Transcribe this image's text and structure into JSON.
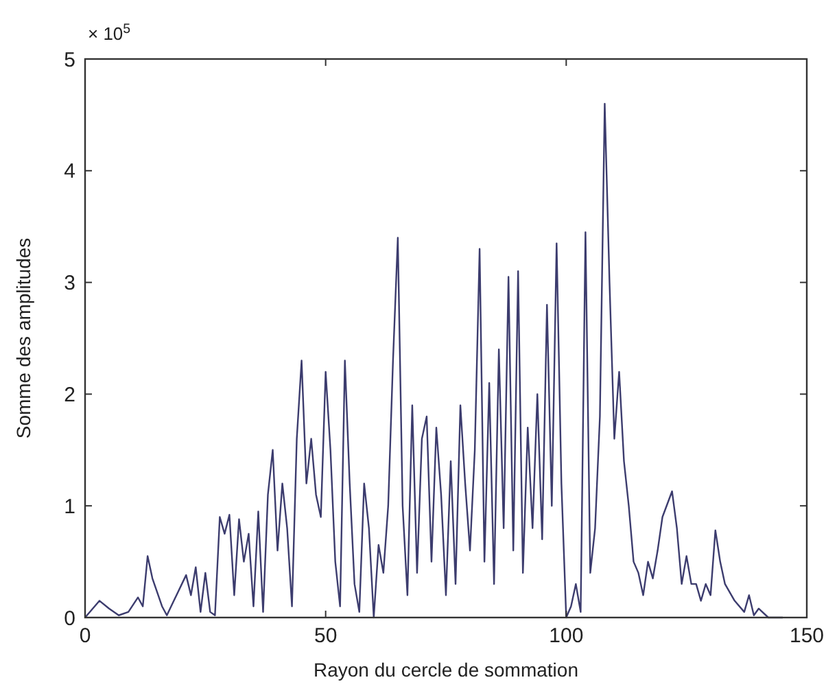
{
  "chart_data": {
    "type": "line",
    "xlabel": "Rayon du cercle de sommation",
    "ylabel": "Somme des amplitudes",
    "annotations": [
      "× 10$^{5}$"
    ],
    "xlim": [
      0,
      150
    ],
    "ylim": [
      0,
      5
    ],
    "xticks": [
      0,
      50,
      100,
      150
    ],
    "yticks": [
      0,
      1,
      2,
      3,
      4,
      5
    ],
    "grid": false,
    "series": [
      {
        "color": "#3c3c6e",
        "x": [
          0,
          3,
          5,
          7,
          9,
          11,
          12,
          13,
          14,
          16,
          17,
          19,
          21,
          22,
          23,
          24,
          25,
          26,
          27,
          28,
          29,
          30,
          31,
          32,
          33,
          34,
          35,
          36,
          37,
          38,
          39,
          40,
          41,
          42,
          43,
          44,
          45,
          46,
          47,
          48,
          49,
          50,
          51,
          52,
          53,
          54,
          55,
          56,
          57,
          58,
          59,
          60,
          61,
          62,
          63,
          64,
          65,
          66,
          67,
          68,
          69,
          70,
          71,
          72,
          73,
          74,
          75,
          76,
          77,
          78,
          79,
          80,
          81,
          82,
          83,
          84,
          85,
          86,
          87,
          88,
          89,
          90,
          91,
          92,
          93,
          94,
          95,
          96,
          97,
          98,
          99,
          100,
          101,
          102,
          103,
          104,
          105,
          106,
          107,
          108,
          109,
          110,
          111,
          112,
          113,
          114,
          115,
          116,
          117,
          118,
          119,
          120,
          122,
          123,
          124,
          125,
          126,
          127,
          128,
          129,
          130,
          131,
          132,
          133,
          135,
          137,
          138,
          139,
          140,
          142,
          145
        ],
        "values": [
          0,
          0.15,
          0.08,
          0.02,
          0.05,
          0.18,
          0.1,
          0.55,
          0.35,
          0.1,
          0.02,
          0.2,
          0.38,
          0.2,
          0.45,
          0.05,
          0.4,
          0.05,
          0.02,
          0.9,
          0.75,
          0.92,
          0.2,
          0.88,
          0.5,
          0.75,
          0.1,
          0.95,
          0.05,
          1.1,
          1.5,
          0.6,
          1.2,
          0.8,
          0.1,
          1.6,
          2.3,
          1.2,
          1.6,
          1.1,
          0.9,
          2.2,
          1.5,
          0.5,
          0.1,
          2.3,
          1.2,
          0.3,
          0.05,
          1.2,
          0.8,
          0,
          0.65,
          0.4,
          1,
          2.3,
          3.4,
          1,
          0.2,
          1.9,
          0.4,
          1.6,
          1.8,
          0.5,
          1.7,
          1.1,
          0.2,
          1.4,
          0.3,
          1.9,
          1.2,
          0.6,
          1.5,
          3.3,
          0.5,
          2.1,
          0.3,
          2.4,
          0.8,
          3.05,
          0.6,
          3.1,
          0.4,
          1.7,
          0.8,
          2,
          0.7,
          2.8,
          1,
          3.35,
          1.2,
          0,
          0.1,
          0.3,
          0.05,
          3.45,
          0.4,
          0.8,
          1.8,
          4.6,
          3,
          1.6,
          2.2,
          1.4,
          1,
          0.5,
          0.4,
          0.2,
          0.5,
          0.35,
          0.6,
          0.9,
          1.13,
          0.8,
          0.3,
          0.55,
          0.3,
          0.3,
          0.15,
          0.3,
          0.2,
          0.78,
          0.5,
          0.3,
          0.15,
          0.05,
          0.2,
          0.02,
          0.08,
          0,
          0
        ]
      }
    ]
  }
}
